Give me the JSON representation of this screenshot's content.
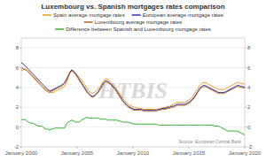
{
  "chart_data": {
    "type": "line",
    "title": "Luxembourg vs. Spanish mortgages rates comparison",
    "annotations": [
      "HTBIS",
      "Source: European Central Bank"
    ],
    "x": [
      2000,
      2000.168067,
      2000.336134,
      2000.504202,
      2000.672269,
      2000.840336,
      2001.008403,
      2001.176471,
      2001.344538,
      2001.512605,
      2001.680672,
      2001.848739,
      2002.016807,
      2002.184874,
      2002.352941,
      2002.521008,
      2002.689076,
      2002.857143,
      2003.02521,
      2003.193277,
      2003.361345,
      2003.529412,
      2003.697479,
      2003.865546,
      2004.033613,
      2004.201681,
      2004.369748,
      2004.537815,
      2004.705882,
      2004.87395,
      2005.042017,
      2005.210084,
      2005.378151,
      2005.546218,
      2005.714286,
      2005.882353,
      2006.05042,
      2006.218487,
      2006.386555,
      2006.554622,
      2006.722689,
      2006.890756,
      2007.058824,
      2007.226891,
      2007.394958,
      2007.563025,
      2007.731092,
      2007.89916,
      2008.067227,
      2008.235294,
      2008.403361,
      2008.571429,
      2008.739496,
      2008.907563,
      2009.07563,
      2009.243697,
      2009.411765,
      2009.579832,
      2009.747899,
      2009.915966,
      2010.084034,
      2010.252101,
      2010.420168,
      2010.588235,
      2010.756303,
      2010.92437,
      2011.092437,
      2011.260504,
      2011.428571,
      2011.596639,
      2011.764706,
      2011.932773,
      2012.10084,
      2012.268908,
      2012.436975,
      2012.605042,
      2012.773109,
      2012.941176,
      2013.109244,
      2013.277311,
      2013.445378,
      2013.613445,
      2013.781513,
      2013.94958,
      2014.117647,
      2014.285714,
      2014.453782,
      2014.621849,
      2014.789916,
      2014.957983,
      2015.12605,
      2015.294118,
      2015.462185,
      2015.630252,
      2015.798319,
      2015.966387,
      2016.134454,
      2016.302521,
      2016.470588,
      2016.638655,
      2016.806723,
      2016.97479,
      2017.142857,
      2017.310924,
      2017.478992,
      2017.647059,
      2017.815126,
      2017.983193,
      2018.151261,
      2018.319328,
      2018.487395,
      2018.655462,
      2018.823529,
      2018.991597,
      2019.159664,
      2019.327731,
      2019.495798,
      2019.663866,
      2019.831933,
      2020
    ],
    "series": [
      {
        "name": "Spain average mortgage rates",
        "color": "#e8a020",
        "values": [
          5.7,
          5.8,
          5.9,
          5.8,
          5.6,
          5.4,
          5.2,
          5.0,
          4.8,
          4.6,
          4.4,
          4.2,
          4.0,
          3.8,
          3.7,
          3.6,
          3.5,
          3.5,
          3.6,
          3.7,
          3.8,
          3.9,
          4.0,
          4.1,
          4.5,
          5.0,
          5.5,
          5.8,
          5.6,
          5.4,
          5.2,
          5.0,
          4.8,
          4.5,
          4.2,
          3.9,
          3.6,
          3.5,
          3.4,
          3.5,
          3.7,
          3.9,
          4.1,
          4.4,
          4.7,
          4.9,
          4.8,
          4.7,
          4.5,
          4.3,
          4.1,
          3.8,
          3.5,
          3.2,
          2.9,
          2.7,
          2.5,
          2.3,
          2.2,
          2.1,
          2.0,
          2.0,
          1.9,
          1.9,
          1.9,
          1.8,
          1.8,
          1.8,
          1.8,
          1.8,
          1.8,
          1.8,
          1.8,
          1.8,
          1.9,
          1.9,
          2.0,
          2.0,
          2.1,
          2.1,
          2.2,
          2.3,
          2.4,
          2.5,
          2.5,
          2.5,
          2.5,
          2.5,
          2.6,
          2.7,
          2.8,
          3.0,
          3.3,
          3.6,
          3.9,
          4.2,
          4.4,
          4.5,
          4.5,
          4.4,
          4.3,
          4.2,
          4.1,
          4.0,
          3.9,
          3.8,
          3.8,
          3.8,
          3.8,
          3.9,
          4.0,
          4.1,
          4.2,
          4.3,
          4.4,
          4.5,
          4.5,
          4.4,
          4.4,
          4.3
        ]
      },
      {
        "name": "European average mortgage rates",
        "color": "#3030b0",
        "values": [
          6.5,
          6.4,
          6.2,
          6.0,
          5.8,
          5.6,
          5.4,
          5.2,
          5.0,
          4.8,
          4.6,
          4.4,
          4.2,
          4.0,
          3.8,
          3.7,
          3.7,
          3.8,
          3.9,
          4.0,
          4.1,
          4.2,
          4.3,
          4.5,
          4.8,
          5.2,
          5.6,
          5.8,
          5.6,
          5.4,
          5.1,
          4.8,
          4.5,
          4.2,
          3.9,
          3.6,
          3.4,
          3.2,
          3.1,
          3.2,
          3.4,
          3.6,
          3.9,
          4.2,
          4.5,
          4.7,
          4.6,
          4.5,
          4.3,
          4.1,
          3.9,
          3.6,
          3.3,
          3.0,
          2.7,
          2.5,
          2.3,
          2.1,
          2.0,
          1.9,
          1.8,
          1.8,
          1.8,
          1.8,
          1.8,
          1.7,
          1.7,
          1.7,
          1.7,
          1.7,
          1.7,
          1.7,
          1.7,
          1.8,
          1.8,
          1.9,
          1.9,
          1.9,
          2.0,
          2.0,
          2.1,
          2.1,
          2.2,
          2.3,
          2.3,
          2.3,
          2.3,
          2.3,
          2.4,
          2.5,
          2.6,
          2.8,
          3.0,
          3.3,
          3.6,
          3.9,
          4.1,
          4.2,
          4.2,
          4.1,
          4.0,
          3.9,
          3.8,
          3.7,
          3.6,
          3.5,
          3.5,
          3.5,
          3.5,
          3.6,
          3.7,
          3.8,
          3.9,
          4.0,
          4.1,
          4.2,
          4.2,
          4.1,
          4.1,
          4.0
        ]
      },
      {
        "name": "Luxembourg average mortgage rates",
        "color": "#b06020",
        "values": [
          6.0,
          5.9,
          5.8,
          5.7,
          5.5,
          5.3,
          5.1,
          4.9,
          4.7,
          4.5,
          4.3,
          4.1,
          3.9,
          3.7,
          3.6,
          3.5,
          3.6,
          3.7,
          3.8,
          3.9,
          4.0,
          4.1,
          4.2,
          4.4,
          4.7,
          5.1,
          5.5,
          5.7,
          5.5,
          5.3,
          5.0,
          4.7,
          4.4,
          4.1,
          3.8,
          3.5,
          3.3,
          3.1,
          3.0,
          3.1,
          3.3,
          3.5,
          3.8,
          4.1,
          4.4,
          4.6,
          4.5,
          4.4,
          4.2,
          4.0,
          3.8,
          3.5,
          3.2,
          2.9,
          2.6,
          2.4,
          2.2,
          2.0,
          1.9,
          1.8,
          1.7,
          1.7,
          1.7,
          1.7,
          1.7,
          1.6,
          1.6,
          1.6,
          1.6,
          1.6,
          1.6,
          1.6,
          1.6,
          1.7,
          1.7,
          1.8,
          1.8,
          1.8,
          1.9,
          1.9,
          2.0,
          2.0,
          2.1,
          2.2,
          2.2,
          2.2,
          2.2,
          2.2,
          2.3,
          2.4,
          2.5,
          2.7,
          2.9,
          3.2,
          3.5,
          3.8,
          4.0,
          4.1,
          4.1,
          4.0,
          3.9,
          3.8,
          3.7,
          3.6,
          3.5,
          3.4,
          3.4,
          3.4,
          3.4,
          3.5,
          3.6,
          3.7,
          3.8,
          3.9,
          4.0,
          4.1,
          4.1,
          4.0,
          4.0,
          3.9
        ]
      },
      {
        "name": "Difference between Spanish and Luxembourg mortgage rates",
        "color": "#30b030",
        "values": [
          0.8,
          0.7,
          0.8,
          0.6,
          0.5,
          0.4,
          0.4,
          0.3,
          0.2,
          0.1,
          0.1,
          0.1,
          -0.1,
          -0.2,
          -0.2,
          -0.3,
          -0.2,
          -0.2,
          -0.1,
          -0.1,
          -0.1,
          -0.1,
          -0.1,
          -0.1,
          0.3,
          0.5,
          0.6,
          0.7,
          0.6,
          0.5,
          0.5,
          0.5,
          0.7,
          0.8,
          0.9,
          1.0,
          0.9,
          0.9,
          0.9,
          0.9,
          0.9,
          0.9,
          0.8,
          0.8,
          0.8,
          0.8,
          0.7,
          0.7,
          0.7,
          0.7,
          0.7,
          0.7,
          0.6,
          0.6,
          0.5,
          0.5,
          0.5,
          0.5,
          0.4,
          0.4,
          0.3,
          0.3,
          0.3,
          0.3,
          0.3,
          0.3,
          0.3,
          0.3,
          0.3,
          0.3,
          0.3,
          0.3,
          0.3,
          0.2,
          0.2,
          0.2,
          0.2,
          0.2,
          0.2,
          0.2,
          0.2,
          0.2,
          0.2,
          0.2,
          0.2,
          0.2,
          0.2,
          0.2,
          0.2,
          0.2,
          0.2,
          0.2,
          0.2,
          0.2,
          0.2,
          0.2,
          0.2,
          0.2,
          0.2,
          0.2,
          0.2,
          0.2,
          0.2,
          0.1,
          0.1,
          0.1,
          0.0,
          -0.1,
          -0.2,
          -0.3,
          -0.4,
          -0.4,
          -0.4,
          -0.4,
          -0.4,
          -0.4,
          -0.5,
          -0.6,
          -0.7,
          -0.8
        ]
      }
    ],
    "xlim": [
      2000,
      2020
    ],
    "xticks": [
      {
        "value": 2000,
        "label": "January 2000"
      },
      {
        "value": 2005,
        "label": "January 2005"
      },
      {
        "value": 2010,
        "label": "January 2010"
      },
      {
        "value": 2015,
        "label": "January 2015"
      },
      {
        "value": 2020,
        "label": "January 2020"
      }
    ],
    "ylim": [
      -2,
      9
    ],
    "yticks": [
      -2,
      0,
      2,
      4,
      6,
      8
    ],
    "y2lim": [
      -2,
      9
    ],
    "y2ticks": [
      -2,
      0,
      2,
      4,
      6,
      8
    ],
    "grid": true,
    "legend": "top"
  }
}
